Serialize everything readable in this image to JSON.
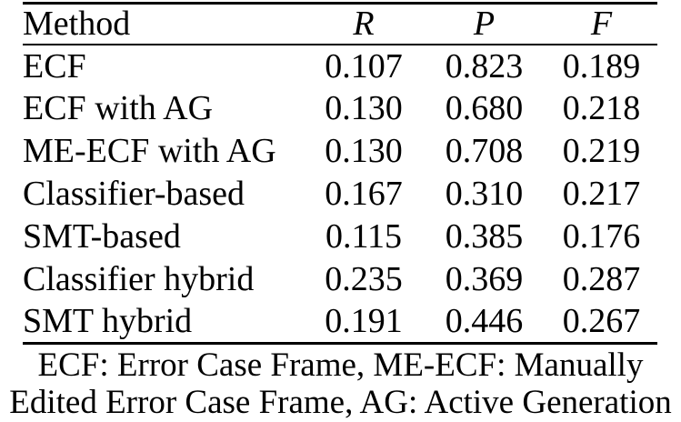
{
  "table": {
    "columns": [
      "Method",
      "R",
      "P",
      "F"
    ],
    "rows": [
      {
        "method": "ECF",
        "r": "0.107",
        "p": "0.823",
        "f": "0.189",
        "bold_columns": [
          "p"
        ]
      },
      {
        "method": "ECF with AG",
        "r": "0.130",
        "p": "0.680",
        "f": "0.218",
        "bold_columns": []
      },
      {
        "method": "ME-ECF with AG",
        "r": "0.130",
        "p": "0.708",
        "f": "0.219",
        "bold_columns": []
      },
      {
        "method": "Classifier-based",
        "r": "0.167",
        "p": "0.310",
        "f": "0.217",
        "bold_columns": []
      },
      {
        "method": "SMT-based",
        "r": "0.115",
        "p": "0.385",
        "f": "0.176",
        "bold_columns": []
      },
      {
        "method": "Classifier hybrid",
        "r": "0.235",
        "p": "0.369",
        "f": "0.287",
        "bold_columns": [
          "r",
          "f"
        ]
      },
      {
        "method": "SMT hybrid",
        "r": "0.191",
        "p": "0.446",
        "f": "0.267",
        "bold_columns": []
      }
    ]
  },
  "caption": {
    "line1": "ECF: Error Case Frame, ME-ECF: Manually",
    "line2": "Edited Error Case Frame, AG: Active Generation"
  },
  "colors": {
    "text": "#000000",
    "background": "#ffffff",
    "rule": "#000000"
  }
}
